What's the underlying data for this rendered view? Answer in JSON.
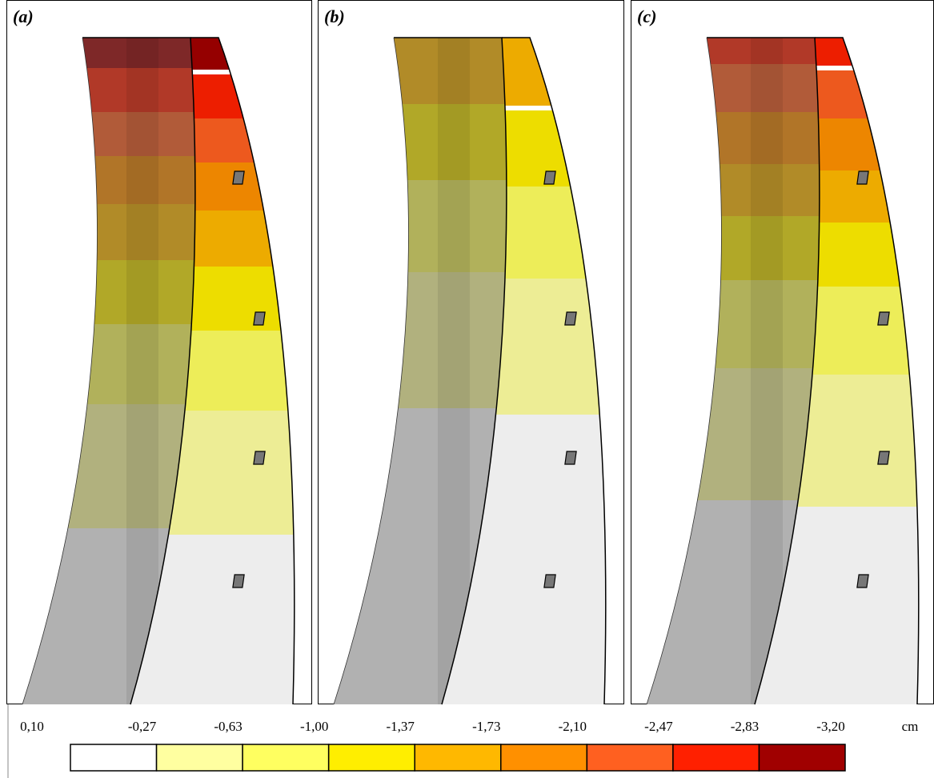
{
  "panels": [
    {
      "label": "(a)"
    },
    {
      "label": "(b)"
    },
    {
      "label": "(c)"
    }
  ],
  "legend": {
    "labels": [
      "0,10",
      "-0,27",
      "-0,63",
      "-1,00",
      "-1,37",
      "-1,73",
      "-2,10",
      "-2,47",
      "-2,83",
      "-3,20"
    ],
    "unit": "cm",
    "colors": [
      "#ffffff",
      "#ffffa0",
      "#ffff60",
      "#ffee00",
      "#ffb800",
      "#ff9000",
      "#ff6020",
      "#ff2000",
      "#a00000"
    ]
  }
}
